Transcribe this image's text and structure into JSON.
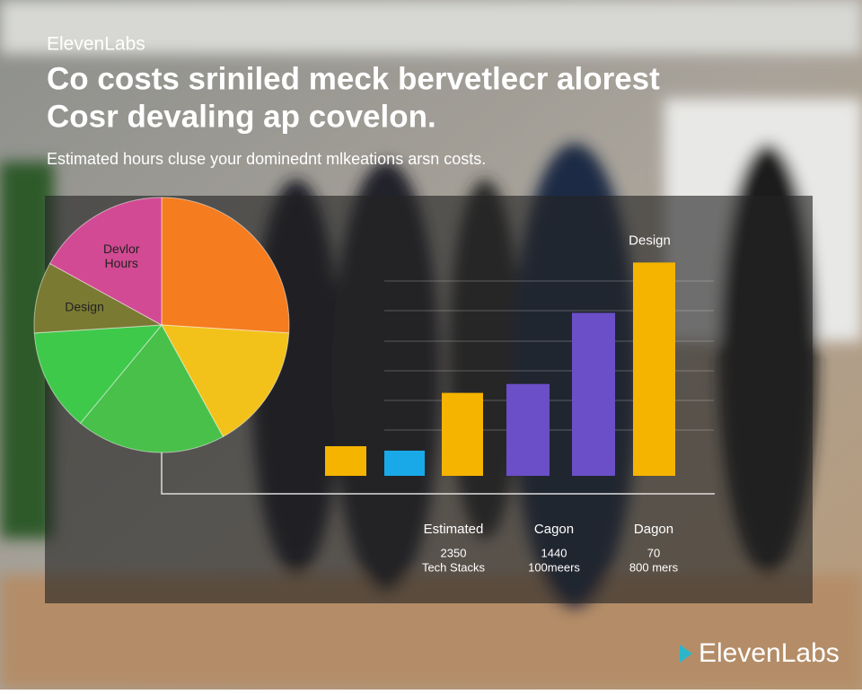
{
  "brand": "ElevenLabs",
  "title_lines": [
    "Co costs sriniled meck bervetlecr alorest",
    "Cosr devaling ap covelon."
  ],
  "subtitle": "Estimated hours cluse your dominednt mlkeations arsn costs.",
  "chart_data": [
    {
      "type": "pie",
      "labels": [
        null,
        null,
        null,
        null,
        "Design",
        "Devlor Hours"
      ],
      "values": [
        26,
        16,
        19,
        13,
        9,
        17
      ],
      "colors": [
        "#f57c1f",
        "#f2c21b",
        "#48c04a",
        "#3fc94a",
        "#7a7a32",
        "#d24a93"
      ]
    },
    {
      "type": "bar",
      "values": [
        1,
        0.85,
        2.8,
        3.1,
        5.5,
        7.2
      ],
      "colors": [
        "#f5b400",
        "#19a9e8",
        "#f5b400",
        "#6a4fc8",
        "#6a4fc8",
        "#f5b400"
      ],
      "ylim": [
        0,
        8
      ],
      "annotation": "Design",
      "groups": [
        {
          "title": "Estimated",
          "value": "2350",
          "sub": "Tech Stacks"
        },
        {
          "title": "Cagon",
          "value": "1440",
          "sub": "100meers"
        },
        {
          "title": "Dagon",
          "value": "70",
          "sub": "800 mers"
        }
      ]
    }
  ],
  "logo": "ElevenLabs"
}
